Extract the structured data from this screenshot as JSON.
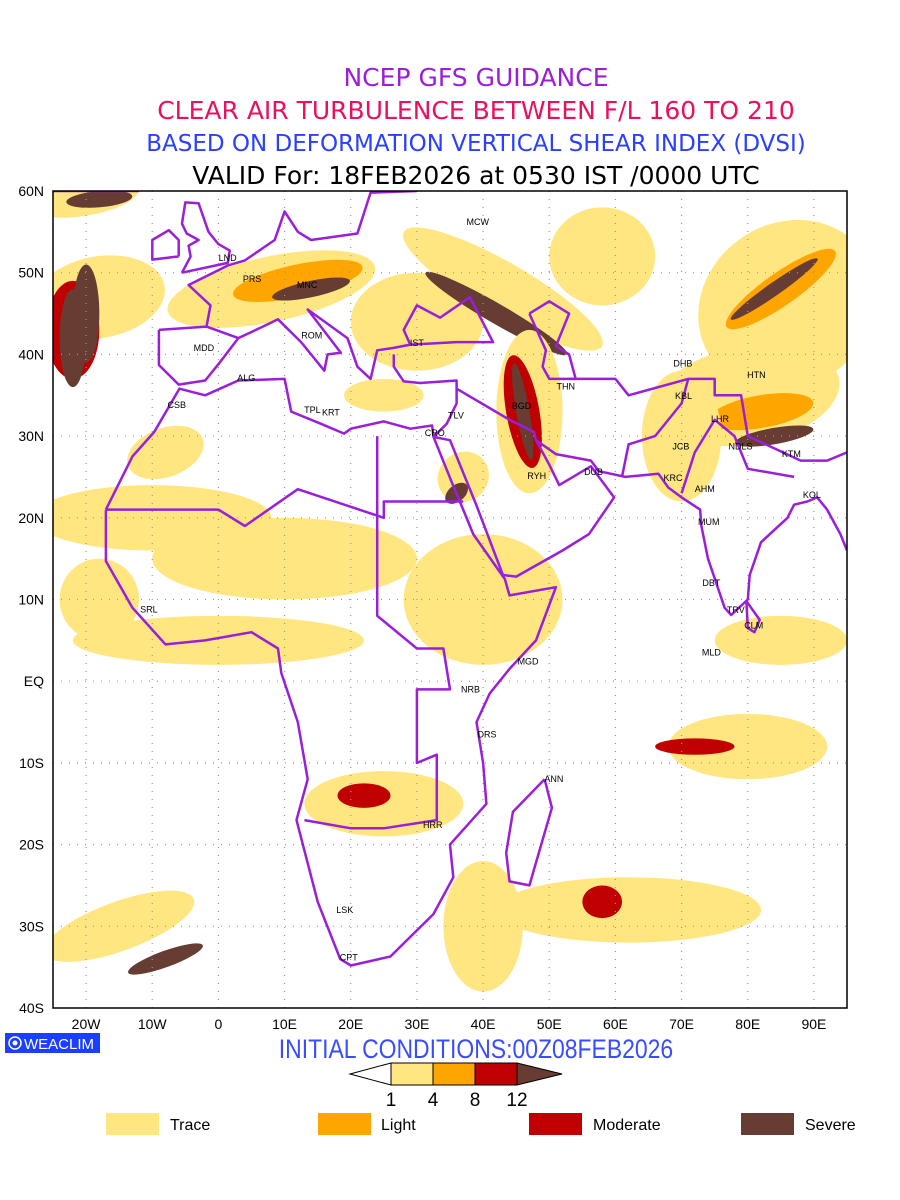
{
  "titles": {
    "line1": "NCEP GFS GUIDANCE",
    "line2": "CLEAR AIR TURBULENCE BETWEEN F/L 160 TO 210",
    "line3": "BASED ON DEFORMATION VERTICAL SHEAR INDEX (DVSI)",
    "line4": "VALID For: 18FEB2026 at 0530 IST /0000 UTC"
  },
  "axes": {
    "lat_labels": [
      "60N",
      "50N",
      "40N",
      "30N",
      "20N",
      "10N",
      "EQ",
      "10S",
      "20S",
      "30S",
      "40S"
    ],
    "lat_values": [
      60,
      50,
      40,
      30,
      20,
      10,
      0,
      -10,
      -20,
      -30,
      -40
    ],
    "lon_labels": [
      "20W",
      "10W",
      "0",
      "10E",
      "20E",
      "30E",
      "40E",
      "50E",
      "60E",
      "70E",
      "80E",
      "90E"
    ],
    "lon_values": [
      -20,
      -10,
      0,
      10,
      20,
      30,
      40,
      50,
      60,
      70,
      80,
      90
    ],
    "lon_range": [
      -25,
      95
    ],
    "lat_range": [
      -40,
      60
    ]
  },
  "stations": [
    {
      "code": "MCW",
      "lon": 39.2,
      "lat": 56.2
    },
    {
      "code": "LND",
      "lon": 1.4,
      "lat": 51.8
    },
    {
      "code": "PRS",
      "lon": 5.1,
      "lat": 49.2
    },
    {
      "code": "MNC",
      "lon": 13.4,
      "lat": 48.5
    },
    {
      "code": "MDD",
      "lon": -2.2,
      "lat": 40.8
    },
    {
      "code": "ROM",
      "lon": 14.1,
      "lat": 42.3
    },
    {
      "code": "IST",
      "lon": 30.0,
      "lat": 41.4
    },
    {
      "code": "ALG",
      "lon": 4.2,
      "lat": 37.1
    },
    {
      "code": "CSB",
      "lon": -6.3,
      "lat": 33.8
    },
    {
      "code": "TPL",
      "lon": 14.2,
      "lat": 33.2
    },
    {
      "code": "KRT",
      "lon": 17.0,
      "lat": 32.9
    },
    {
      "code": "CRO",
      "lon": 32.7,
      "lat": 30.4
    },
    {
      "code": "TLV",
      "lon": 35.9,
      "lat": 32.5
    },
    {
      "code": "BGD",
      "lon": 45.8,
      "lat": 33.7
    },
    {
      "code": "THN",
      "lon": 52.5,
      "lat": 36.1
    },
    {
      "code": "RYH",
      "lon": 48.1,
      "lat": 25.1
    },
    {
      "code": "DUB",
      "lon": 56.7,
      "lat": 25.6
    },
    {
      "code": "DHB",
      "lon": 70.2,
      "lat": 38.9
    },
    {
      "code": "KBL",
      "lon": 70.3,
      "lat": 34.9
    },
    {
      "code": "HTN",
      "lon": 81.3,
      "lat": 37.5
    },
    {
      "code": "LHR",
      "lon": 75.8,
      "lat": 32.1
    },
    {
      "code": "JCB",
      "lon": 69.9,
      "lat": 28.7
    },
    {
      "code": "NDLS",
      "lon": 78.9,
      "lat": 28.7
    },
    {
      "code": "KTM",
      "lon": 86.6,
      "lat": 27.8
    },
    {
      "code": "KRC",
      "lon": 68.7,
      "lat": 24.9
    },
    {
      "code": "AHM",
      "lon": 73.5,
      "lat": 23.5
    },
    {
      "code": "KOL",
      "lon": 89.7,
      "lat": 22.8
    },
    {
      "code": "MUM",
      "lon": 74.1,
      "lat": 19.5
    },
    {
      "code": "DBT",
      "lon": 74.5,
      "lat": 12.0
    },
    {
      "code": "TRV",
      "lon": 78.2,
      "lat": 8.7
    },
    {
      "code": "CLM",
      "lon": 80.9,
      "lat": 6.8
    },
    {
      "code": "MLD",
      "lon": 74.5,
      "lat": 3.5
    },
    {
      "code": "SRL",
      "lon": -10.5,
      "lat": 8.8
    },
    {
      "code": "MGD",
      "lon": 46.8,
      "lat": 2.4
    },
    {
      "code": "NRB",
      "lon": 38.1,
      "lat": -1.0
    },
    {
      "code": "DRS",
      "lon": 40.6,
      "lat": -6.5
    },
    {
      "code": "ANN",
      "lon": 50.7,
      "lat": -12.0
    },
    {
      "code": "HRR",
      "lon": 32.4,
      "lat": -17.6
    },
    {
      "code": "LSK",
      "lon": 19.1,
      "lat": -28.0
    },
    {
      "code": "CPT",
      "lon": 19.7,
      "lat": -33.8
    }
  ],
  "logo": "WEACLIM",
  "initial_conditions": "INITIAL CONDITIONS:00Z08FEB2026",
  "colorbar": {
    "ticks": [
      "1",
      "4",
      "8",
      "12"
    ],
    "colors": [
      "#ffe680",
      "#ffa500",
      "#c00000",
      "#663c33"
    ]
  },
  "legend": [
    {
      "label": "Trace",
      "color": "#ffe680"
    },
    {
      "label": "Light",
      "color": "#ffa500"
    },
    {
      "label": "Moderate",
      "color": "#c00000"
    },
    {
      "label": "Severe",
      "color": "#663c33"
    }
  ],
  "colors": {
    "boundary": "#9a1fd8",
    "grid": "#999999"
  }
}
